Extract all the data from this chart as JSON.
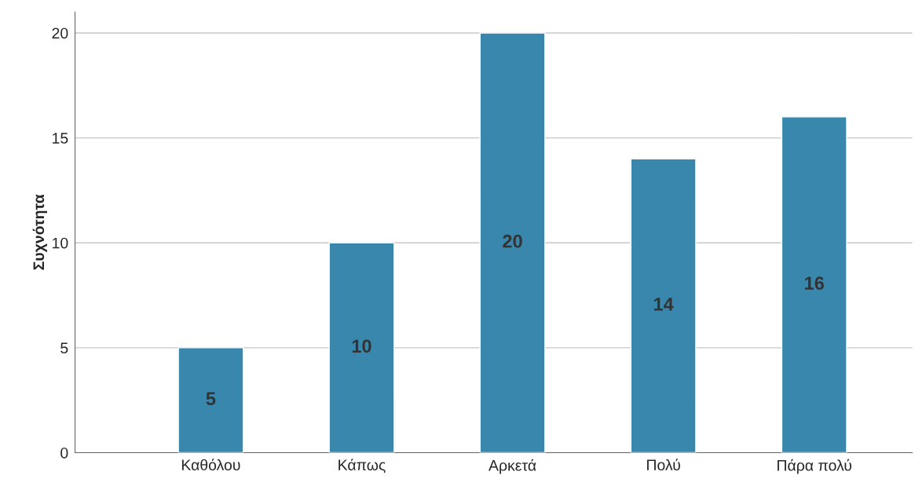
{
  "chart_data": {
    "type": "bar",
    "ylabel": "Συχνότητα",
    "categories": [
      "Καθόλου",
      "Κάπως",
      "Αρκετά",
      "Πολύ",
      "Πάρα πολύ"
    ],
    "values": [
      5,
      10,
      20,
      14,
      16
    ],
    "color": "#3a87ad",
    "ylim": [
      0,
      21
    ],
    "yticks": [
      0,
      5,
      10,
      15,
      20
    ],
    "grid": "y",
    "data_labels": true
  }
}
